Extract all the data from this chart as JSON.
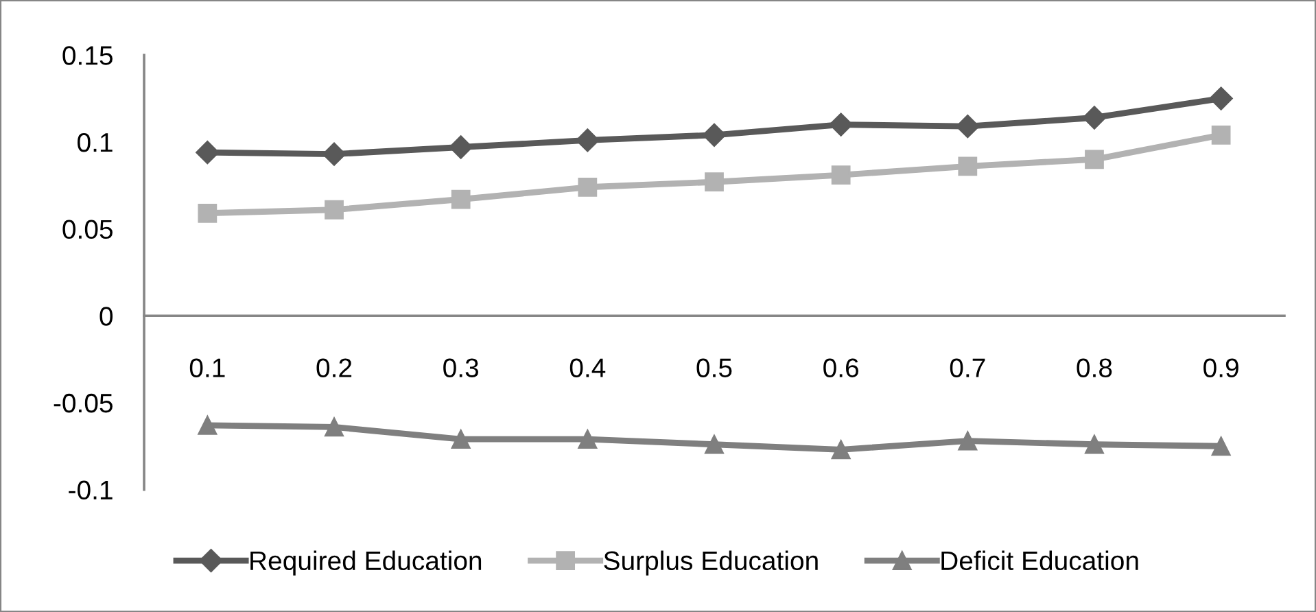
{
  "chart_data": {
    "type": "line",
    "categories": [
      "0.1",
      "0.2",
      "0.3",
      "0.4",
      "0.5",
      "0.6",
      "0.7",
      "0.8",
      "0.9"
    ],
    "series": [
      {
        "name": "Required Education",
        "color": "#595959",
        "marker": "diamond",
        "values": [
          0.094,
          0.093,
          0.097,
          0.101,
          0.104,
          0.11,
          0.109,
          0.114,
          0.125
        ]
      },
      {
        "name": "Surplus Education",
        "color": "#b2b2b2",
        "marker": "square",
        "values": [
          0.059,
          0.061,
          0.067,
          0.074,
          0.077,
          0.081,
          0.086,
          0.09,
          0.104
        ]
      },
      {
        "name": "Deficit Education",
        "color": "#7f7f7f",
        "marker": "triangle",
        "values": [
          -0.063,
          -0.064,
          -0.071,
          -0.071,
          -0.074,
          -0.077,
          -0.072,
          -0.074,
          -0.075
        ]
      }
    ],
    "ylim": [
      -0.1,
      0.15
    ],
    "yticks": [
      -0.1,
      -0.05,
      0,
      0.05,
      0.1,
      0.15
    ],
    "grid": false,
    "legend": "bottom",
    "line_style": "solid"
  }
}
